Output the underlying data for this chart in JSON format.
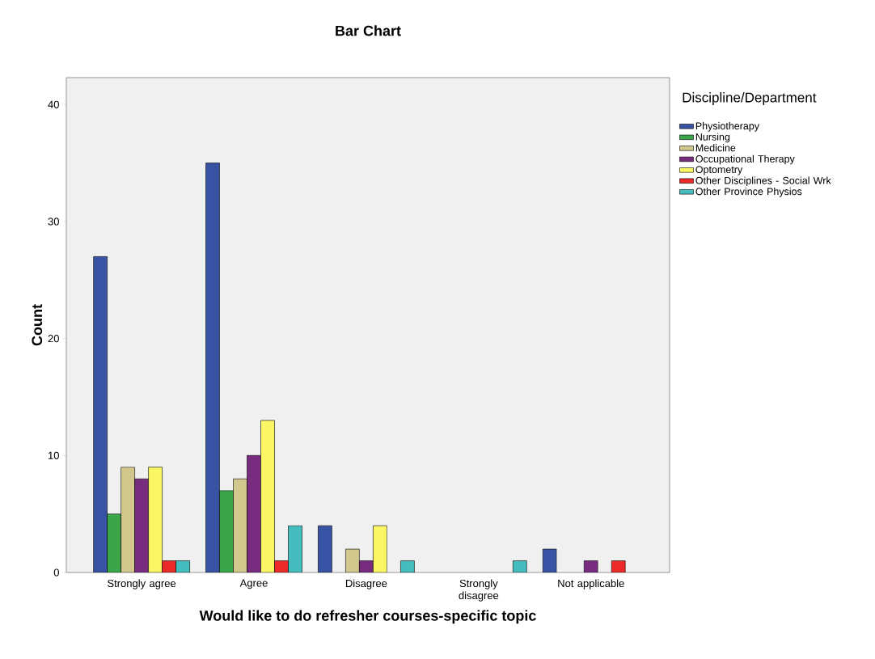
{
  "chart_data": {
    "type": "bar",
    "title": "Bar Chart",
    "xlabel": "Would like to do refresher courses-specific topic",
    "ylabel": "Count",
    "legend_title": "Discipline/Department",
    "categories": [
      "Strongly agree",
      "Agree",
      "Disagree",
      "Strongly disagree",
      "Not applicable"
    ],
    "series": [
      {
        "name": "Physiotherapy",
        "color": "#3953a4",
        "values": [
          27,
          35,
          4,
          null,
          2
        ]
      },
      {
        "name": "Nursing",
        "color": "#3aa54a",
        "values": [
          5,
          7,
          null,
          null,
          null
        ]
      },
      {
        "name": "Medicine",
        "color": "#d2c88e",
        "values": [
          9,
          8,
          2,
          null,
          null
        ]
      },
      {
        "name": "Occupational Therapy",
        "color": "#772c7f",
        "values": [
          8,
          10,
          1,
          null,
          1
        ]
      },
      {
        "name": "Optometry",
        "color": "#fbf764",
        "values": [
          9,
          13,
          4,
          null,
          null
        ]
      },
      {
        "name": "Other Disciplines - Social Wrk",
        "color": "#ed2a2a",
        "values": [
          1,
          1,
          null,
          null,
          1
        ]
      },
      {
        "name": "Other Province Physios",
        "color": "#45bcbe",
        "values": [
          1,
          4,
          1,
          1,
          null
        ]
      }
    ],
    "ylim": [
      0,
      42.3
    ],
    "yticks": [
      0,
      10,
      20,
      30,
      40
    ],
    "legend": "right"
  }
}
